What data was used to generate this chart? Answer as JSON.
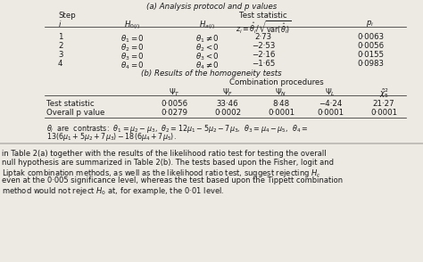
{
  "title_a": "(a) Analysis protocol and p values",
  "title_b": "(b) Results of the homogeneity tests",
  "rows_a": [
    [
      "1",
      "$\\theta_1=0$",
      "$\\theta_1\\neq 0$",
      "2·73",
      "0·0063"
    ],
    [
      "2",
      "$\\theta_2=0$",
      "$\\theta_2<0$",
      "−2·53",
      "0·0056"
    ],
    [
      "3",
      "$\\theta_3=0$",
      "$\\theta_3<0$",
      "−2·16",
      "0·0155"
    ],
    [
      "4",
      "$\\theta_4=0$",
      "$\\theta_4\\neq 0$",
      "−1·65",
      "0·0983"
    ]
  ],
  "rows_b": [
    [
      "Test statistic",
      "0·0056",
      "33·46",
      "8·48",
      "−4·24",
      "21·27"
    ],
    [
      "Overall p value",
      "0·0279",
      "0·0002",
      "0·0001",
      "0·0001",
      "0·0001"
    ]
  ],
  "bottom_lines": [
    "in Table 2(a) together with the results of the likelihood ratio test for testing the overall",
    "null hypothesis are summarized in Table 2(b). The tests based upon the Fisher, logit and",
    "Liptak combination methods, as well as the likelihood ratio test, suggest rejecting $H_c$",
    "even at the 0·005 significance level, whereas the test based upon the Tippett combination",
    "method would not reject $H_0$ at, for example, the 0·01 level."
  ],
  "bg_color": "#edeae4",
  "text_color": "#1a1a1a"
}
